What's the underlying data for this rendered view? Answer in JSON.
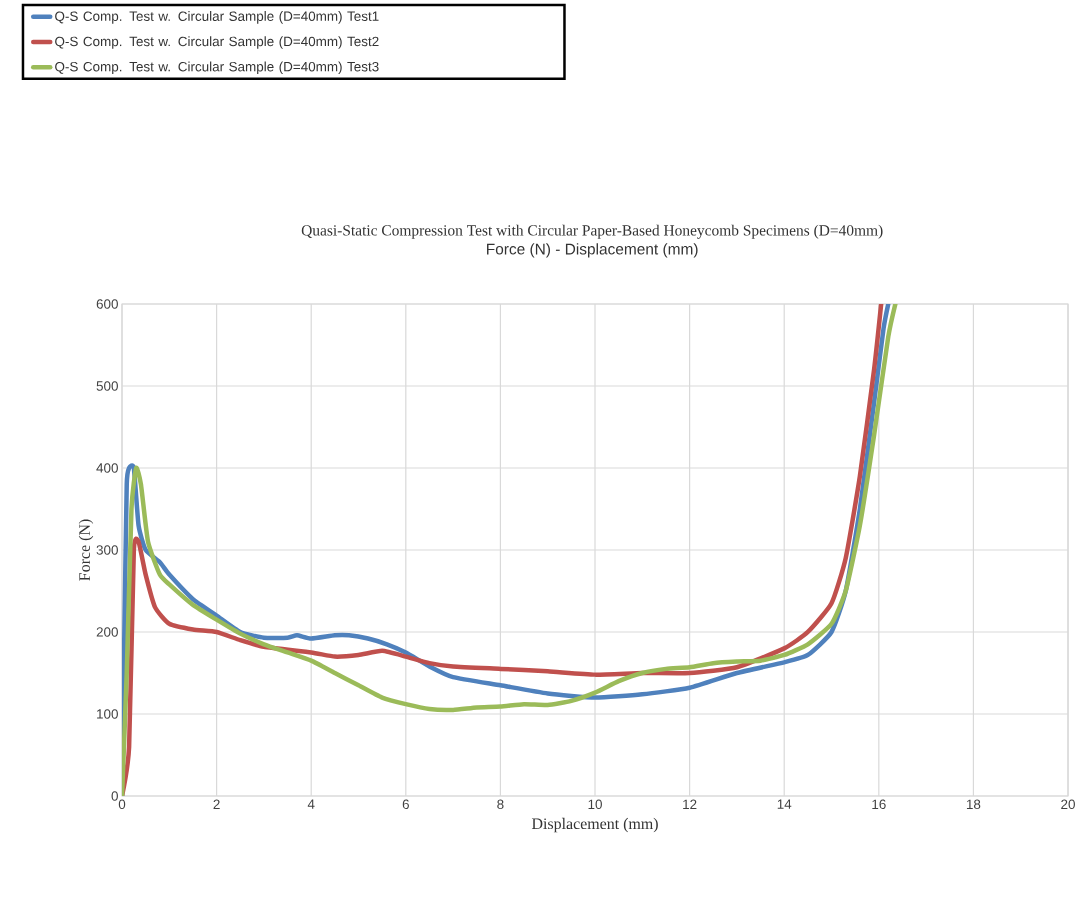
{
  "chart_data": {
    "type": "line",
    "title": "Quasi-Static Compression Test with Circular Paper-Based Honeycomb Specimens (D=40mm)",
    "subtitle": "Force (N) - Displacement (mm)",
    "xlabel": "Displacement (mm)",
    "ylabel": "Force (N)",
    "xlim": [
      0,
      20
    ],
    "xticks": [
      0,
      2,
      4,
      6,
      8,
      10,
      12,
      14,
      16,
      18,
      20
    ],
    "ylim": [
      0,
      600
    ],
    "yticks": [
      0,
      100,
      200,
      300,
      400,
      500,
      600
    ],
    "grid": true,
    "legend": "top left",
    "marker": "none",
    "line_style": "solid",
    "series": [
      {
        "name": "Q-S Comp. Test w. Circular Sample (D=40mm) Test1",
        "color": "#4f81bd",
        "x": [
          0,
          0.05,
          0.1,
          0.15,
          0.25,
          0.35,
          0.5,
          0.8,
          1,
          1.5,
          2,
          2.5,
          3,
          3.5,
          3.7,
          4,
          4.5,
          4.8,
          5.2,
          5.6,
          6,
          6.5,
          7,
          8,
          9,
          10,
          11,
          12,
          13,
          14,
          14.5,
          15,
          15.3,
          15.6,
          15.9,
          16.1,
          16.2
        ],
        "values": [
          0,
          200,
          380,
          400,
          400,
          330,
          300,
          285,
          270,
          240,
          220,
          200,
          193,
          193,
          196,
          192,
          196,
          196,
          192,
          185,
          175,
          158,
          145,
          135,
          125,
          120,
          124,
          132,
          150,
          163,
          172,
          200,
          250,
          350,
          480,
          570,
          600
        ]
      },
      {
        "name": "Q-S Comp. Test w. Circular Sample (D=40mm) Test2",
        "color": "#c0504d",
        "x": [
          0,
          0.15,
          0.25,
          0.35,
          0.5,
          0.7,
          1,
          1.5,
          2,
          2.5,
          3,
          4,
          4.5,
          5,
          5.5,
          6,
          6.5,
          7,
          8,
          9,
          10,
          11,
          12,
          13,
          14,
          14.5,
          15,
          15.3,
          15.6,
          15.9,
          16.05
        ],
        "values": [
          0,
          60,
          300,
          310,
          270,
          230,
          210,
          203,
          200,
          190,
          182,
          175,
          170,
          172,
          177,
          170,
          162,
          158,
          155,
          152,
          148,
          150,
          150,
          157,
          180,
          200,
          235,
          290,
          390,
          520,
          600
        ]
      },
      {
        "name": "Q-S Comp. Test w. Circular Sample (D=40mm) Test3",
        "color": "#9bbb59",
        "x": [
          0,
          0.1,
          0.2,
          0.3,
          0.4,
          0.55,
          0.8,
          1,
          1.5,
          2,
          2.5,
          3,
          3.5,
          4,
          4.5,
          5,
          5.5,
          6,
          6.5,
          7,
          7.5,
          8,
          8.5,
          9,
          9.5,
          10,
          10.5,
          11,
          11.5,
          12,
          12.5,
          13,
          13.5,
          14,
          14.5,
          15,
          15.3,
          15.6,
          15.9,
          16.2,
          16.35
        ],
        "values": [
          0,
          150,
          350,
          400,
          380,
          310,
          270,
          258,
          233,
          215,
          198,
          185,
          175,
          165,
          150,
          135,
          120,
          112,
          106,
          105,
          108,
          109,
          112,
          111,
          116,
          126,
          140,
          150,
          155,
          157,
          162,
          164,
          165,
          172,
          185,
          210,
          250,
          330,
          440,
          560,
          600
        ]
      }
    ]
  }
}
